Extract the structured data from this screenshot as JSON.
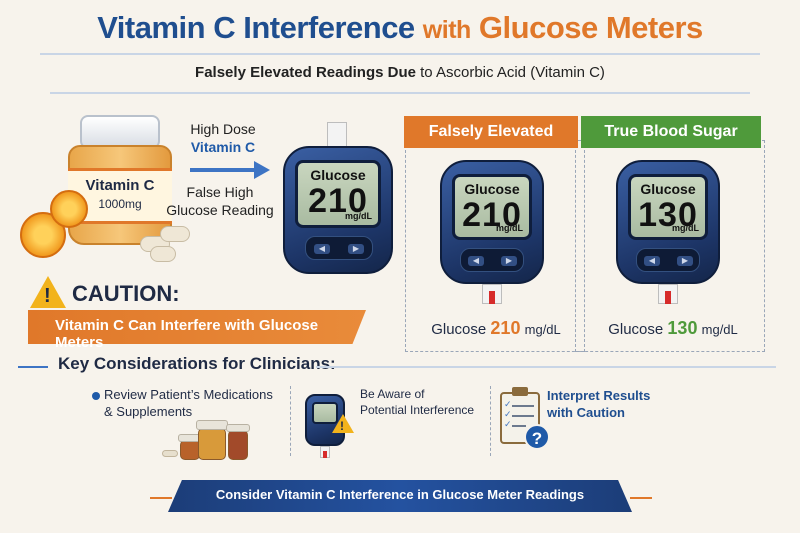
{
  "header": {
    "title_part1": "Vitamin C Interference",
    "title_with": "with",
    "title_part2": "Glucose Meters",
    "subtitle_bold": "Falsely Elevated Readings Due",
    "subtitle_rest": "to Ascorbic Acid (Vitamin C)"
  },
  "bottle": {
    "label_name": "Vitamin C",
    "label_dose": "1000mg"
  },
  "arrow": {
    "line1": "High Dose",
    "line2": "Vitamin C",
    "false_line1": "False High",
    "false_line2": "Glucose Reading"
  },
  "main_meter": {
    "label": "Glucose",
    "value": "210",
    "unit": "mg/dL"
  },
  "caution": {
    "icon": "warning-triangle-icon",
    "bang": "!",
    "title": "CAUTION:",
    "message": "Vitamin C Can Interfere with Glucose Meters"
  },
  "comparison": {
    "elevated": {
      "tag": "Falsely Elevated",
      "screen_label": "Glucose",
      "screen_value": "210",
      "screen_unit": "mg/dL",
      "caption_prefix": "Glucose",
      "caption_value": "210",
      "caption_unit": "mg/dL"
    },
    "true": {
      "tag": "True Blood Sugar",
      "screen_label": "Glucose",
      "screen_value": "130",
      "screen_unit": "mg/dL",
      "caption_prefix": "Glucose",
      "caption_value": "130",
      "caption_unit": "mg/dL"
    }
  },
  "considerations": {
    "title": "Key Considerations for Clinicians:",
    "item1_line1": "Review Patient’s Medications",
    "item1_line2": "& Supplements",
    "item2_line1": "Be Aware of",
    "item2_line2": "Potential Interference",
    "item3_line1": "Interpret Results",
    "item3_line2": "with Caution",
    "question_mark": "?"
  },
  "footer": {
    "banner": "Consider Vitamin C Interference in Glucose Meter Readings"
  },
  "colors": {
    "navy": "#1f4e8f",
    "orange": "#e0782a",
    "green": "#4f9a3b",
    "background": "#f7f3ec"
  },
  "icons": {
    "meter_buttons": [
      "left-arrow-icon",
      "right-arrow-icon"
    ]
  }
}
